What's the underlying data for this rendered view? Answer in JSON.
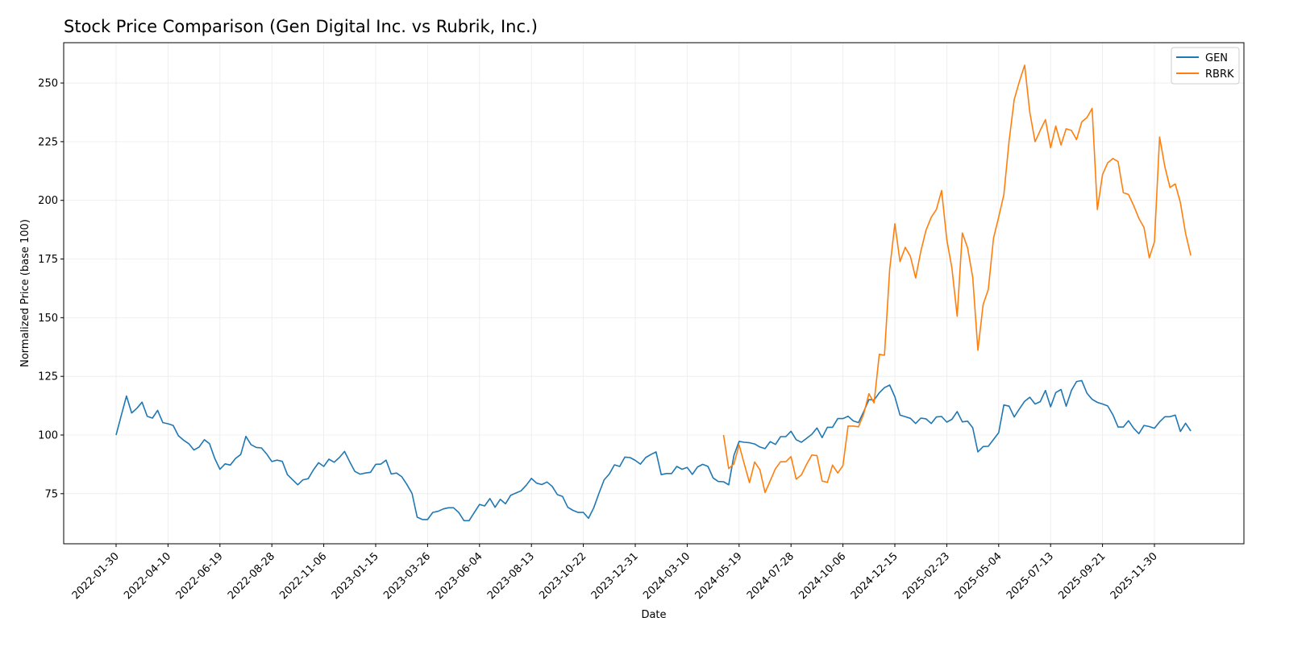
{
  "chart_data": {
    "type": "line",
    "title": "Stock Price Comparison (Gen Digital Inc. vs Rubrik, Inc.)",
    "xlabel": "Date",
    "ylabel": "Normalized Price (base 100)",
    "frequency": "weekly",
    "ylim": [
      53.7,
      267.2
    ],
    "xlim": [
      "2021-12-20",
      "2026-02-20"
    ],
    "grid": true,
    "legend_position": "top-right",
    "yticks": [
      75,
      100,
      125,
      150,
      175,
      200,
      225,
      250
    ],
    "ytick_labels": [
      "75",
      "100",
      "125",
      "150",
      "175",
      "200",
      "225",
      "250"
    ],
    "xtick_labels": [
      "2022-01-30",
      "2022-04-10",
      "2022-06-19",
      "2022-08-28",
      "2022-11-06",
      "2023-01-15",
      "2023-03-26",
      "2023-06-04",
      "2023-08-13",
      "2023-10-22",
      "2023-12-31",
      "2024-03-10",
      "2024-05-19",
      "2024-07-28",
      "2024-10-06",
      "2024-12-15",
      "2025-02-23",
      "2025-05-04",
      "2025-07-13",
      "2025-09-21",
      "2025-11-30"
    ],
    "series": [
      {
        "name": "GEN",
        "color": "#1f77b4",
        "start_date": "2022-01-30",
        "values": [
          100,
          108.3,
          116.6,
          109.4,
          111.4,
          114,
          108,
          107.2,
          110.5,
          105.3,
          104.8,
          104.1,
          99.7,
          97.8,
          96.3,
          93.6,
          94.9,
          98,
          96.3,
          90,
          85.4,
          87.7,
          87.2,
          90,
          91.7,
          99.4,
          95.9,
          94.7,
          94.5,
          91.9,
          88.7,
          89.3,
          88.8,
          83.1,
          80.9,
          78.8,
          80.9,
          81.4,
          85.1,
          88.2,
          86.6,
          89.7,
          88.4,
          90.4,
          93,
          88.6,
          84.5,
          83.3,
          83.8,
          84.1,
          87.5,
          87.6,
          89.3,
          83.4,
          83.8,
          82.3,
          79,
          75.1,
          65,
          64,
          64,
          67,
          67.5,
          68.5,
          69,
          69,
          67,
          63.5,
          63.5,
          67,
          70.4,
          69.8,
          72.9,
          69.2,
          72.6,
          70.7,
          74.3,
          75.3,
          76.2,
          78.6,
          81.5,
          79.5,
          78.9,
          80,
          78.1,
          74.6,
          73.8,
          69.2,
          67.9,
          67,
          67,
          64.5,
          69,
          75.1,
          80.9,
          83.4,
          87.3,
          86.6,
          90.6,
          90.4,
          89.2,
          87.6,
          90.4,
          91.7,
          92.8,
          83.1,
          83.6,
          83.6,
          86.6,
          85.4,
          86.2,
          83.2,
          86.4,
          87.5,
          86.6,
          81.7,
          80.2,
          80.1,
          78.8,
          91.3,
          97.3,
          96.9,
          96.7,
          96.2,
          94.9,
          94.2,
          97.2,
          96,
          99.3,
          99.3,
          101.6,
          98,
          96.9,
          98.6,
          100.3,
          103,
          98.9,
          103.3,
          103.3,
          107,
          107,
          108,
          106,
          105.3,
          110,
          115.1,
          114.9,
          118,
          120.2,
          121.3,
          116.3,
          108.5,
          107.8,
          107.1,
          104.9,
          107.2,
          106.9,
          104.9,
          107.7,
          107.9,
          105.5,
          106.7,
          110,
          105.6,
          105.9,
          103.1,
          92.8,
          95.1,
          95.2,
          98.1,
          101,
          112.8,
          112.3,
          107.7,
          111.2,
          114.4,
          116.1,
          113.2,
          114.2,
          119,
          112,
          118.1,
          119.4,
          112.3,
          119,
          122.8,
          123.2,
          117.8,
          115.2,
          113.9,
          113.2,
          112.4,
          108.6,
          103.4,
          103.4,
          106.1,
          102.9,
          100.6,
          104.1,
          103.6,
          102.9,
          105.6,
          107.8,
          107.8,
          108.5,
          101.5,
          105,
          101.7
        ]
      },
      {
        "name": "RBRK",
        "color": "#ff7f0e",
        "start_date": "2024-04-28",
        "values": [
          100,
          85.7,
          87.7,
          95.8,
          87.7,
          79.7,
          88.5,
          85.2,
          75.5,
          80.5,
          85.7,
          88.6,
          88.6,
          90.8,
          81.2,
          83,
          87.5,
          91.5,
          91.2,
          80.4,
          79.8,
          87.2,
          83.8,
          87,
          103.8,
          103.8,
          103.5,
          109,
          117.6,
          113.7,
          134.4,
          134,
          170.6,
          190,
          173.9,
          180,
          176.1,
          166.9,
          178.3,
          187.2,
          192.8,
          196.1,
          204.2,
          183.3,
          171.1,
          150.6,
          186.1,
          179.8,
          167.2,
          136.1,
          155.6,
          162,
          183.9,
          192.9,
          202.4,
          225.3,
          243,
          250.8,
          257.6,
          237.5,
          225,
          229.8,
          234.4,
          222.4,
          231.7,
          223.6,
          230.5,
          229.8,
          225.9,
          233.4,
          235.3,
          239.2,
          196.1,
          211,
          216,
          217.8,
          216.5,
          203.3,
          202.5,
          197.8,
          192.3,
          188.4,
          175.5,
          182.3,
          227,
          214.3,
          205.5,
          207,
          199,
          186,
          176.5
        ]
      }
    ]
  }
}
